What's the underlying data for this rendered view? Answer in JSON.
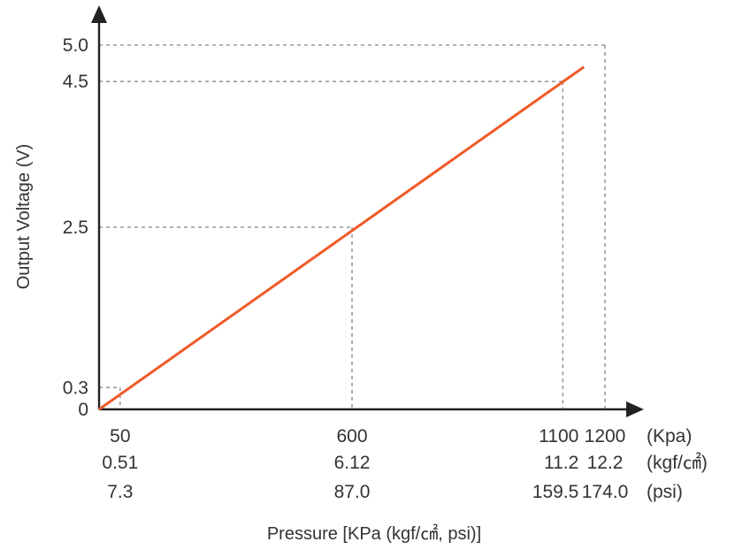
{
  "chart_data": {
    "type": "line",
    "xlabel": "Pressure [KPa (kgf/㎠, psi)]",
    "ylabel": "Output Voltage (V)",
    "xlim": [
      0,
      1200
    ],
    "ylim": [
      0,
      5.0
    ],
    "series": [
      {
        "x": [
          0,
          1150
        ],
        "y": [
          0,
          4.7
        ],
        "color": "#f05a28"
      }
    ],
    "y_ticks": [
      {
        "value": 0,
        "label": "0"
      },
      {
        "value": 0.3,
        "label": "0.3"
      },
      {
        "value": 2.5,
        "label": "2.5"
      },
      {
        "value": 4.5,
        "label": "4.5"
      },
      {
        "value": 5.0,
        "label": "5.0"
      }
    ],
    "x_ticks": [
      {
        "value": 50,
        "kpa": "50",
        "kgf": "0.51",
        "psi": "7.3"
      },
      {
        "value": 600,
        "kpa": "600",
        "kgf": "6.12",
        "psi": "87.0"
      },
      {
        "value": 1100,
        "kpa": "1100",
        "kgf": "11.2",
        "psi": "159.5"
      },
      {
        "value": 1200,
        "kpa": "1200",
        "kgf": "12.2",
        "psi": "174.0"
      }
    ],
    "unit_labels": [
      "(Kpa)",
      "(kgf/㎠)",
      "(psi)"
    ],
    "reference_points": [
      {
        "x": 50,
        "y": 0.3
      },
      {
        "x": 600,
        "y": 2.5
      },
      {
        "x": 1100,
        "y": 4.5
      },
      {
        "x": 1200,
        "y": 5.0
      }
    ],
    "grid": "dashed reference lines",
    "colors": {
      "line": "#f05a28",
      "axis": "#222222",
      "grid": "#9a9a9a"
    }
  }
}
